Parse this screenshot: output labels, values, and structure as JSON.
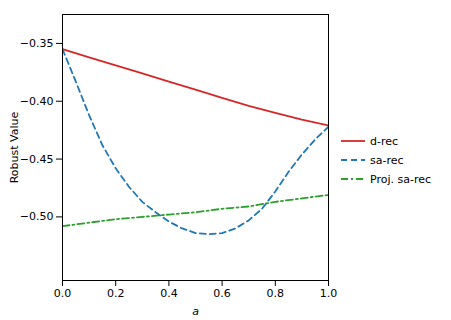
{
  "chart_data": {
    "type": "line",
    "title": "",
    "xlabel": "a",
    "ylabel": "Robust Value",
    "xlim": [
      0.0,
      1.0
    ],
    "ylim": [
      -0.555,
      -0.325
    ],
    "xticks": [
      {
        "value": 0.0,
        "label": "0.0"
      },
      0.2,
      0.4,
      0.6,
      0.8,
      {
        "value": 1.0,
        "label": "1.0"
      }
    ],
    "yticks": [
      {
        "value": -0.35,
        "label": "−0.35"
      },
      {
        "value": -0.4,
        "label": "−0.40"
      },
      {
        "value": -0.45,
        "label": "−0.45"
      },
      {
        "value": -0.5,
        "label": "−0.50"
      }
    ],
    "legend": "right",
    "series": [
      {
        "name": "d-rec",
        "color": "#d62728",
        "line_style": "solid",
        "x": [
          0.0,
          0.1,
          0.2,
          0.3,
          0.4,
          0.5,
          0.6,
          0.7,
          0.8,
          0.9,
          1.0
        ],
        "values": [
          -0.355,
          -0.362,
          -0.369,
          -0.376,
          -0.383,
          -0.39,
          -0.397,
          -0.404,
          -0.41,
          -0.416,
          -0.421
        ]
      },
      {
        "name": "sa-rec",
        "color": "#1f77b4",
        "line_style": "dashed",
        "x": [
          0.0,
          0.05,
          0.1,
          0.15,
          0.2,
          0.25,
          0.3,
          0.35,
          0.4,
          0.45,
          0.5,
          0.55,
          0.6,
          0.65,
          0.7,
          0.75,
          0.8,
          0.85,
          0.9,
          0.95,
          1.0
        ],
        "values": [
          -0.355,
          -0.383,
          -0.412,
          -0.438,
          -0.458,
          -0.474,
          -0.487,
          -0.496,
          -0.504,
          -0.51,
          -0.514,
          -0.515,
          -0.514,
          -0.51,
          -0.503,
          -0.493,
          -0.478,
          -0.461,
          -0.446,
          -0.433,
          -0.422
        ]
      },
      {
        "name": "Proj. sa-rec",
        "color": "#2ca02c",
        "line_style": "dashdot",
        "x": [
          0.0,
          0.1,
          0.2,
          0.3,
          0.4,
          0.5,
          0.6,
          0.7,
          0.8,
          0.9,
          1.0
        ],
        "values": [
          -0.508,
          -0.505,
          -0.502,
          -0.5,
          -0.498,
          -0.496,
          -0.493,
          -0.491,
          -0.487,
          -0.484,
          -0.481
        ]
      }
    ]
  }
}
